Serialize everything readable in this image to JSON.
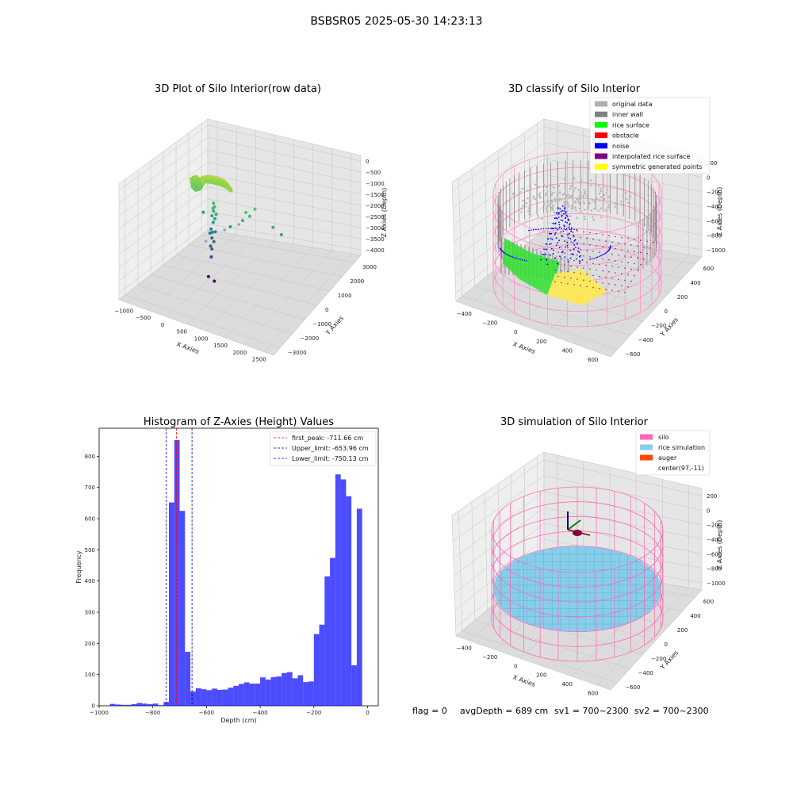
{
  "suptitle": "BSBSR05 2025-05-30 14:23:13",
  "status": {
    "flag": "flag = 0",
    "avg_depth": "avgDepth = 689 cm",
    "sv1": "sv1 = 700~2300",
    "sv2": "sv2 = 700~2300"
  },
  "colors": {
    "histogram_bars": "#0000ff",
    "silo": "#ff69b4",
    "rice_simulation": "#87ceeb",
    "auger": "#ff4500"
  },
  "chart_data": [
    {
      "type": "scatter",
      "projection": "3d",
      "title": "3D Plot of Silo Interior(row data)",
      "xlabel": "X Axies",
      "ylabel": "Y Axies",
      "zlabel": "Z Axies (Depth)",
      "x_ticks": [
        "−1000",
        "−500",
        "0",
        "500",
        "1000",
        "1500",
        "2000",
        "2500"
      ],
      "y_ticks": [
        "−3000",
        "−2000",
        "−1000",
        "0",
        "1000",
        "2000",
        "3000"
      ],
      "z_ticks": [
        "0",
        "−500",
        "−1000",
        "−1500",
        "−2000",
        "−2500",
        "−3000",
        "−3500",
        "−4000"
      ],
      "xlim": [
        -1300,
        2700
      ],
      "ylim": [
        -3300,
        3300
      ],
      "zlim": [
        -4300,
        300
      ],
      "colormap": "viridis by depth",
      "points": [
        {
          "x": -150,
          "y": 50,
          "z": -4150
        },
        {
          "x": 30,
          "y": -30,
          "z": -4200
        },
        {
          "x": -60,
          "y": 0,
          "z": -3300
        },
        {
          "x": -30,
          "y": -40,
          "z": -2950
        },
        {
          "x": -90,
          "y": 30,
          "z": -2900
        },
        {
          "x": 10,
          "y": -10,
          "z": -2650
        },
        {
          "x": -50,
          "y": 20,
          "z": -2550
        },
        {
          "x": -110,
          "y": 40,
          "z": -2400
        },
        {
          "x": -30,
          "y": -20,
          "z": -2300
        },
        {
          "x": 40,
          "y": 10,
          "z": -2250
        },
        {
          "x": -70,
          "y": 10,
          "z": -2200
        },
        {
          "x": 1450,
          "y": 250,
          "z": -1400
        },
        {
          "x": 1650,
          "y": 300,
          "z": -1600
        },
        {
          "x": 700,
          "y": 150,
          "z": -1500
        },
        {
          "x": 900,
          "y": 100,
          "z": -1200
        },
        {
          "x": 1000,
          "y": 200,
          "z": -900
        },
        {
          "x": 800,
          "y": 100,
          "z": -1100
        },
        {
          "x": 450,
          "y": -50,
          "z": -1800
        },
        {
          "x": -300,
          "y": 100,
          "z": -1700
        },
        {
          "x": -10,
          "y": 0,
          "z": -1900
        },
        {
          "x": 20,
          "y": 30,
          "z": -1750
        },
        {
          "x": -40,
          "y": -10,
          "z": -1650
        },
        {
          "x": 60,
          "y": 20,
          "z": -1550
        },
        {
          "x": 0,
          "y": 0,
          "z": -1450
        },
        {
          "x": -20,
          "y": 10,
          "z": -1350
        },
        {
          "x": 30,
          "y": -20,
          "z": -1250
        },
        {
          "x": -10,
          "y": 20,
          "z": -1150
        }
      ]
    },
    {
      "type": "scatter",
      "projection": "3d",
      "title": "3D classify of Silo Interior",
      "xlabel": "X Axies",
      "ylabel": "Y Axies",
      "zlabel": "Z Axies (Depth)",
      "x_ticks": [
        "−400",
        "−200",
        "0",
        "200",
        "400",
        "600"
      ],
      "y_ticks": [
        "−600",
        "−400",
        "−200",
        "0",
        "200",
        "400",
        "600"
      ],
      "z_ticks": [
        "200",
        "0",
        "−200",
        "−400",
        "−600",
        "−800",
        "−1000"
      ],
      "xlim": [
        -550,
        750
      ],
      "ylim": [
        -700,
        700
      ],
      "zlim": [
        -1150,
        300
      ],
      "legend_position": "top-right",
      "legend": [
        {
          "label": "original data",
          "color": "#b0b0b0"
        },
        {
          "label": "inner wall",
          "color": "#808080"
        },
        {
          "label": "rice surface",
          "color": "#00ff00"
        },
        {
          "label": "obstacle",
          "color": "#ff0000"
        },
        {
          "label": "noise",
          "color": "#0000ff"
        },
        {
          "label": "interpolated rice surface",
          "color": "#800080"
        },
        {
          "label": "symmetric generated points",
          "color": "#ffff00"
        }
      ]
    },
    {
      "type": "bar",
      "title": "Histogram of Z-Axies (Height) Values",
      "xlabel": "Depth (cm)",
      "ylabel": "Frequency",
      "xlim": [
        -1000,
        40
      ],
      "ylim": [
        0,
        890
      ],
      "x_ticks": [
        "−1000",
        "−800",
        "−600",
        "−400",
        "−200",
        "0"
      ],
      "y_ticks": [
        "0",
        "100",
        "200",
        "300",
        "400",
        "500",
        "600",
        "700",
        "800"
      ],
      "bin_width": 20,
      "bins": [
        {
          "x": -960,
          "v": 6
        },
        {
          "x": -940,
          "v": 4
        },
        {
          "x": -920,
          "v": 3
        },
        {
          "x": -900,
          "v": 3
        },
        {
          "x": -880,
          "v": 5
        },
        {
          "x": -860,
          "v": 9
        },
        {
          "x": -840,
          "v": 7
        },
        {
          "x": -820,
          "v": 5
        },
        {
          "x": -800,
          "v": 7
        },
        {
          "x": -780,
          "v": 2
        },
        {
          "x": -760,
          "v": 12
        },
        {
          "x": -740,
          "v": 652
        },
        {
          "x": -720,
          "v": 852
        },
        {
          "x": -700,
          "v": 625
        },
        {
          "x": -680,
          "v": 173
        },
        {
          "x": -660,
          "v": 46
        },
        {
          "x": -640,
          "v": 56
        },
        {
          "x": -620,
          "v": 53
        },
        {
          "x": -600,
          "v": 50
        },
        {
          "x": -580,
          "v": 55
        },
        {
          "x": -560,
          "v": 51
        },
        {
          "x": -540,
          "v": 52
        },
        {
          "x": -520,
          "v": 58
        },
        {
          "x": -500,
          "v": 64
        },
        {
          "x": -480,
          "v": 70
        },
        {
          "x": -460,
          "v": 75
        },
        {
          "x": -440,
          "v": 71
        },
        {
          "x": -420,
          "v": 71
        },
        {
          "x": -400,
          "v": 91
        },
        {
          "x": -380,
          "v": 84
        },
        {
          "x": -360,
          "v": 92
        },
        {
          "x": -340,
          "v": 94
        },
        {
          "x": -320,
          "v": 105
        },
        {
          "x": -300,
          "v": 108
        },
        {
          "x": -280,
          "v": 88
        },
        {
          "x": -260,
          "v": 98
        },
        {
          "x": -240,
          "v": 76
        },
        {
          "x": -220,
          "v": 78
        },
        {
          "x": -200,
          "v": 230
        },
        {
          "x": -180,
          "v": 260
        },
        {
          "x": -160,
          "v": 415
        },
        {
          "x": -140,
          "v": 474
        },
        {
          "x": -120,
          "v": 742
        },
        {
          "x": -100,
          "v": 726
        },
        {
          "x": -80,
          "v": 672
        },
        {
          "x": -60,
          "v": 130
        },
        {
          "x": -40,
          "v": 632
        }
      ],
      "vlines": [
        {
          "label": "first_peak: -711.66 cm",
          "x": -711.66,
          "color": "#ff0000"
        },
        {
          "label": "Upper_limit: -653.96 cm",
          "x": -653.96,
          "color": "#00008b"
        },
        {
          "label": "Lower_limit: -750.13 cm",
          "x": -750.13,
          "color": "#0000ff"
        }
      ],
      "legend_position": "top-right"
    },
    {
      "type": "surface",
      "projection": "3d",
      "title": "3D simulation of Silo Interior",
      "xlabel": "X Axies",
      "ylabel": "Y Axies",
      "zlabel": "Z Axies (Depth)",
      "x_ticks": [
        "−400",
        "−200",
        "0",
        "200",
        "400",
        "600"
      ],
      "y_ticks": [
        "−600",
        "−400",
        "−200",
        "0",
        "200",
        "400",
        "600"
      ],
      "z_ticks": [
        "200",
        "0",
        "−200",
        "−400",
        "−600",
        "−800",
        "−1000"
      ],
      "legend_position": "top-right",
      "legend": [
        {
          "label": "silo",
          "color": "#ff69b4"
        },
        {
          "label": "rice simulation",
          "color": "#87ceeb"
        },
        {
          "label": "auger",
          "color": "#ff4500"
        },
        {
          "label": "center(97,-11)",
          "color": ""
        }
      ]
    }
  ]
}
